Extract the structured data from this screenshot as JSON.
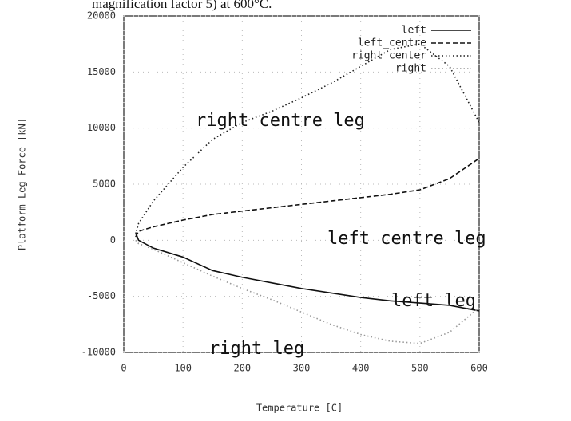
{
  "chart_data": {
    "type": "line",
    "caption": "magnification factor 5) at 600°C.",
    "xlabel": "Temperature [C]",
    "ylabel": "Platform Leg Force [kN]",
    "x": [
      20,
      25,
      50,
      100,
      150,
      200,
      250,
      300,
      350,
      400,
      450,
      500,
      550,
      600
    ],
    "series": [
      {
        "name": "left",
        "color": "#111111",
        "style": "solid",
        "values": [
          700,
          0,
          -700,
          -1500,
          -2700,
          -3300,
          -3800,
          -4300,
          -4700,
          -5100,
          -5400,
          -5600,
          -5800,
          -6300
        ]
      },
      {
        "name": "left_centre",
        "color": "#111111",
        "style": "dashed",
        "values": [
          300,
          800,
          1200,
          1800,
          2300,
          2600,
          2900,
          3200,
          3500,
          3800,
          4100,
          4500,
          5500,
          7300
        ]
      },
      {
        "name": "right_center",
        "color": "#222222",
        "style": "dotted",
        "values": [
          500,
          1500,
          3500,
          6500,
          9000,
          10500,
          11500,
          12700,
          14000,
          15500,
          17000,
          17500,
          15500,
          10500
        ]
      },
      {
        "name": "right",
        "color": "#999999",
        "style": "dotted",
        "values": [
          0,
          -300,
          -800,
          -2000,
          -3200,
          -4300,
          -5300,
          -6400,
          -7500,
          -8400,
          -9000,
          -9200,
          -8200,
          -6000
        ]
      }
    ],
    "annotations": [
      "right centre leg",
      "left centre leg",
      "left leg",
      "right leg"
    ],
    "xlim": [
      0,
      600
    ],
    "xticks": [
      0,
      100,
      200,
      300,
      400,
      500,
      600
    ],
    "ylim": [
      -10000,
      20000
    ],
    "yticks": [
      -10000,
      -5000,
      0,
      5000,
      10000,
      15000,
      20000
    ],
    "grid": true,
    "legend": "top-right"
  }
}
